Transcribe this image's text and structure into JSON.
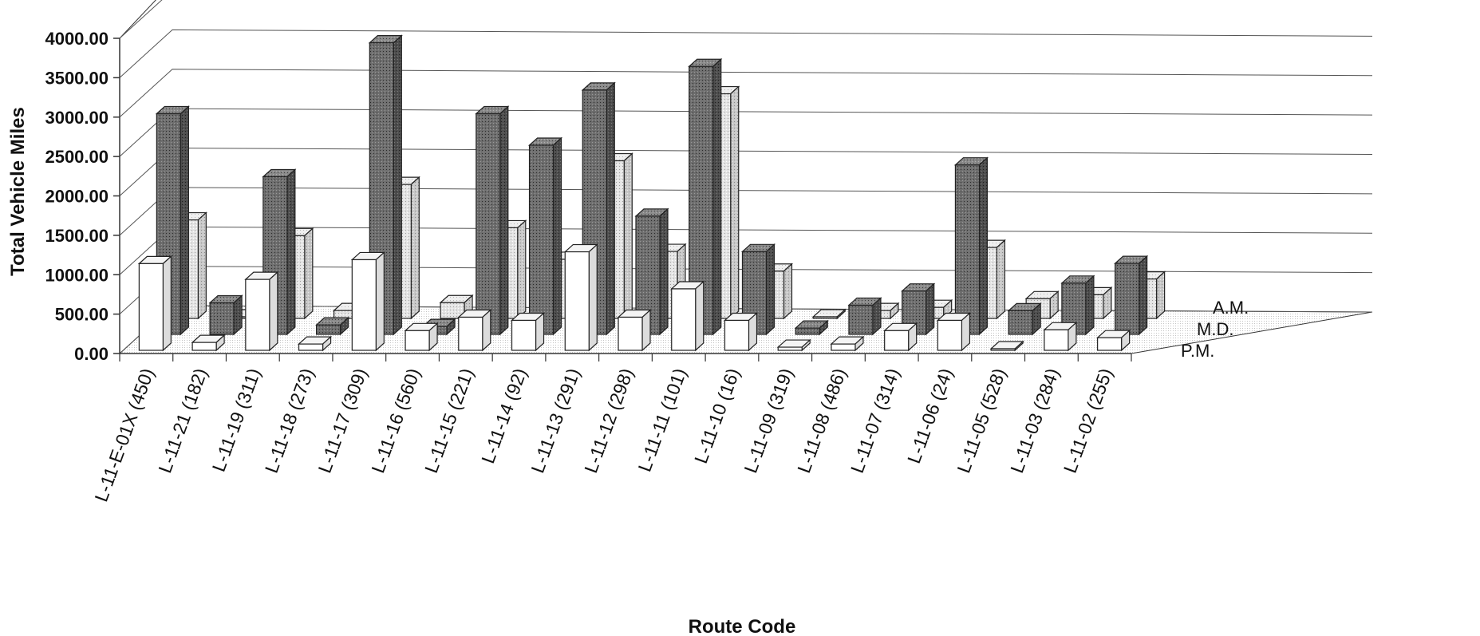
{
  "chart_data": {
    "type": "bar",
    "title": "",
    "xlabel": "Route Code",
    "ylabel": "Total Vehicle Miles",
    "ylim": [
      0,
      4000
    ],
    "yticks": [
      "0.00",
      "500.00",
      "1000.00",
      "1500.00",
      "2000.00",
      "2500.00",
      "3000.00",
      "3500.00",
      "4000.00"
    ],
    "grid": true,
    "legend_position": "right",
    "categories": [
      "L-11-E-01X (450)",
      "L-11-21 (182)",
      "L-11-19 (311)",
      "L-11-18 (273)",
      "L-11-17 (309)",
      "L-11-16 (560)",
      "L-11-15 (221)",
      "L-11-14 (92)",
      "L-11-13 (291)",
      "L-11-12 (298)",
      "L-11-11 (101)",
      "L-11-10 (16)",
      "L-11-09 (319)",
      "L-11-08 (486)",
      "L-11-07 (314)",
      "L-11-06 (24)",
      "L-11-05 (528)",
      "L-11-03 (284)",
      "L-11-02 (255)"
    ],
    "series": [
      {
        "name": "P.M.",
        "color": "#ffffff",
        "values": [
          1100,
          100,
          900,
          80,
          1150,
          250,
          420,
          380,
          1250,
          420,
          780,
          380,
          40,
          80,
          250,
          380,
          20,
          260,
          160
        ]
      },
      {
        "name": "M.D.",
        "color": "#7a7a7a",
        "values": [
          2800,
          400,
          2000,
          120,
          3700,
          100,
          2800,
          2400,
          3100,
          1500,
          3400,
          1050,
          80,
          370,
          550,
          2150,
          300,
          650,
          900
        ]
      },
      {
        "name": "A.M.",
        "color": "#d8d8d8",
        "values": [
          1250,
          20,
          1050,
          100,
          1700,
          200,
          1150,
          750,
          2000,
          850,
          2850,
          600,
          20,
          100,
          140,
          900,
          250,
          300,
          500
        ]
      }
    ]
  }
}
